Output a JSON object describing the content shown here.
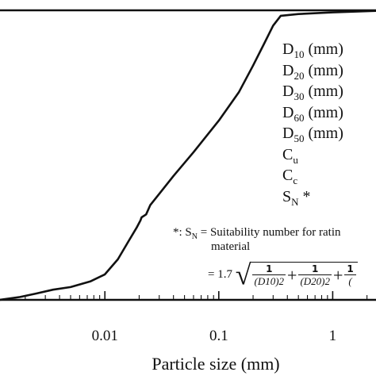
{
  "chart_data": {
    "type": "line",
    "x_scale": "log",
    "xlabel": "Particle size (mm)",
    "ylabel": "",
    "x_ticks": [
      "0.01",
      "0.1",
      "1"
    ],
    "x_tick_values": [
      0.01,
      0.1,
      1
    ],
    "xlim": [
      0.0012,
      2.4
    ],
    "ylim": [
      0,
      100
    ],
    "grid": false,
    "series": [
      {
        "x": [
          0.0012,
          0.0018,
          0.0025,
          0.0035,
          0.005,
          0.0075,
          0.01,
          0.013,
          0.016,
          0.019,
          0.0205,
          0.021,
          0.023,
          0.025,
          0.03,
          0.04,
          0.06,
          0.1,
          0.15,
          0.2,
          0.25,
          0.3,
          0.35,
          0.5,
          1,
          2.4
        ],
        "y": [
          0.0,
          1.0,
          2.2,
          3.5,
          4.4,
          6.4,
          8.8,
          14.0,
          20.0,
          24.9,
          27.4,
          28.5,
          29.5,
          32.7,
          36.6,
          42.8,
          51.0,
          61.9,
          71.7,
          80.9,
          88.5,
          94.7,
          98.1,
          98.7,
          99.3,
          99.8
        ]
      }
    ]
  },
  "legend": {
    "items": [
      {
        "main": "D",
        "sub": "10",
        "rest": " (mm)"
      },
      {
        "main": "D",
        "sub": "20",
        "rest": " (mm)"
      },
      {
        "main": "D",
        "sub": "30",
        "rest": " (mm)"
      },
      {
        "main": "D",
        "sub": "60",
        "rest": " (mm)"
      },
      {
        "main": "D",
        "sub": "50",
        "rest": " (mm)"
      },
      {
        "main": "C",
        "sub": "u",
        "rest": ""
      },
      {
        "main": "C",
        "sub": "c",
        "rest": ""
      },
      {
        "main": "S",
        "sub": "N",
        "rest": " *"
      }
    ]
  },
  "note": {
    "prefix": "*: S",
    "sub": "N",
    "text": " = Suitability number for ratin",
    "line2": "material",
    "eq_prefix": "= 1.7",
    "frac_num": "1",
    "frac1_den": "(D10)2",
    "frac2_den": "(D20)2",
    "frac3_den": "(",
    "plus": "+"
  }
}
